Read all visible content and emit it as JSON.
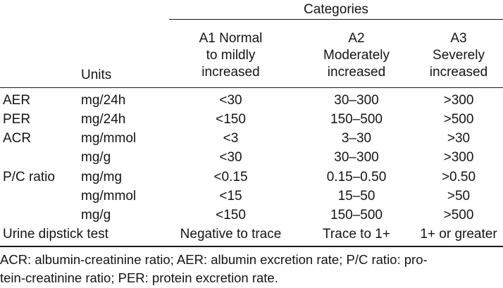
{
  "table": {
    "spanner": "Categories",
    "header": {
      "units": "Units",
      "a1": [
        "A1 Normal",
        "to mildly",
        "increased"
      ],
      "a2": [
        "A2",
        "Moderately",
        "increased"
      ],
      "a3": [
        "A3",
        "Severely",
        "increased"
      ]
    },
    "rows": [
      {
        "label": "AER",
        "unit": "mg/24h",
        "a1": "<30",
        "a2": "30–300",
        "a3": ">300"
      },
      {
        "label": "PER",
        "unit": "mg/24h",
        "a1": "<150",
        "a2": "150–500",
        "a3": ">500"
      },
      {
        "label": "ACR",
        "unit": "mg/mmol",
        "a1": "<3",
        "a2": "3–30",
        "a3": ">30"
      },
      {
        "label": "",
        "unit": "mg/g",
        "a1": "<30",
        "a2": "30–300",
        "a3": ">300"
      },
      {
        "label": "P/C ratio",
        "unit": "mg/mg",
        "a1": "<0.15",
        "a2": "0.15–0.50",
        "a3": ">0.50"
      },
      {
        "label": "",
        "unit": "mg/mmol",
        "a1": "<15",
        "a2": "15–50",
        "a3": ">50"
      },
      {
        "label": "",
        "unit": "mg/g",
        "a1": "<150",
        "a2": "150–500",
        "a3": ">500"
      },
      {
        "label": "Urine dipstick test",
        "unit": "",
        "a1": "Negative to trace",
        "a2": "Trace to 1+",
        "a3": "1+ or greater"
      }
    ],
    "footnote": [
      "ACR: albumin-creatinine ratio; AER: albumin excretion rate; P/C ratio: pro-",
      "tein-creatinine ratio; PER: protein excretion rate."
    ]
  }
}
